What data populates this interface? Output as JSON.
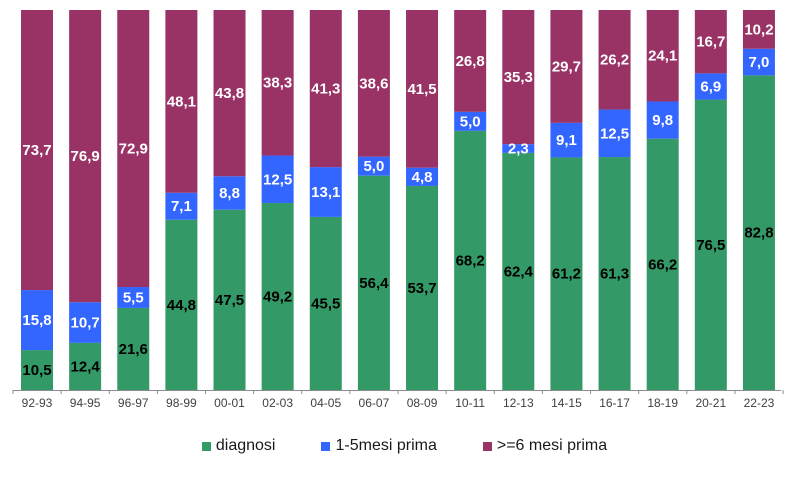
{
  "chart_data": {
    "type": "bar",
    "stacked": true,
    "title": "",
    "xlabel": "",
    "ylabel": "",
    "ylim": [
      0,
      100
    ],
    "categories": [
      "92-93",
      "94-95",
      "96-97",
      "98-99",
      "00-01",
      "02-03",
      "04-05",
      "06-07",
      "08-09",
      "10-11",
      "12-13",
      "14-15",
      "16-17",
      "18-19",
      "20-21",
      "22-23"
    ],
    "series": [
      {
        "name": "diagnosi",
        "color": "#339966",
        "label_color": "#000000",
        "values": [
          10.5,
          12.4,
          21.6,
          44.8,
          47.5,
          49.2,
          45.5,
          56.4,
          53.7,
          68.2,
          62.4,
          61.2,
          61.3,
          66.2,
          76.5,
          82.8
        ],
        "labels": [
          "10,5",
          "12,4",
          "21,6",
          "44,8",
          "47,5",
          "49,2",
          "45,5",
          "56,4",
          "53,7",
          "68,2",
          "62,4",
          "61,2",
          "61,3",
          "66,2",
          "76,5",
          "82,8"
        ]
      },
      {
        "name": "1-5mesi prima",
        "color": "#3366FF",
        "label_color": "#ffffff",
        "values": [
          15.8,
          10.7,
          5.5,
          7.1,
          8.8,
          12.5,
          13.1,
          5.0,
          4.8,
          5.0,
          2.3,
          9.1,
          12.5,
          9.8,
          6.9,
          7.0
        ],
        "labels": [
          "15,8",
          "10,7",
          "5,5",
          "7,1",
          "8,8",
          "12,5",
          "13,1",
          "5,0",
          "4,8",
          "5,0",
          "2,3",
          "9,1",
          "12,5",
          "9,8",
          "6,9",
          "7,0"
        ]
      },
      {
        "name": ">=6 mesi prima",
        "color": "#993366",
        "label_color": "#ffffff",
        "values": [
          73.7,
          76.9,
          72.9,
          48.1,
          43.8,
          38.3,
          41.3,
          38.6,
          41.5,
          26.8,
          35.3,
          29.7,
          26.2,
          24.1,
          16.7,
          10.2
        ],
        "labels": [
          "73,7",
          "76,9",
          "72,9",
          "48,1",
          "43,8",
          "38,3",
          "41,3",
          "38,6",
          "41,5",
          "26,8",
          "35,3",
          "29,7",
          "26,2",
          "24,1",
          "16,7",
          "10,2"
        ]
      }
    ],
    "grid": false,
    "legend_position": "bottom"
  },
  "legend": [
    {
      "label": "diagnosi",
      "color": "#339966"
    },
    {
      "label": "1-5mesi prima",
      "color": "#3366FF"
    },
    {
      "label": ">=6 mesi prima",
      "color": "#993366"
    }
  ]
}
